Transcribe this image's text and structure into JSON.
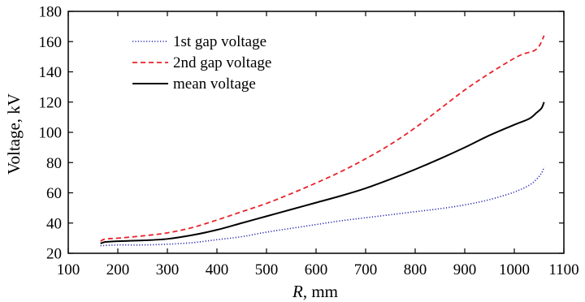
{
  "chart_data": {
    "type": "line",
    "xlabel_italic": "R",
    "xlabel_rest": ", mm",
    "ylabel": "Voltage, kV",
    "xlim": [
      100,
      1100
    ],
    "ylim": [
      20,
      180
    ],
    "xticks": [
      100,
      200,
      300,
      400,
      500,
      600,
      700,
      800,
      900,
      1000,
      1100
    ],
    "yticks": [
      20,
      40,
      60,
      80,
      100,
      120,
      140,
      160,
      180
    ],
    "legend_position": "top-left",
    "grid": false,
    "series": [
      {
        "name": "1st gap voltage",
        "color": "#2b2bb0",
        "style": "dotted",
        "x": [
          165,
          200,
          250,
          300,
          350,
          400,
          450,
          500,
          550,
          600,
          650,
          700,
          750,
          800,
          850,
          900,
          950,
          1000,
          1030,
          1045,
          1055,
          1060
        ],
        "y": [
          25,
          25.5,
          25.5,
          26,
          27,
          29,
          31,
          34,
          36.5,
          39,
          41.5,
          43.5,
          45.5,
          47.5,
          49.5,
          52,
          55.5,
          60.5,
          65,
          69,
          73,
          77
        ]
      },
      {
        "name": "2nd gap voltage",
        "color": "#e8232a",
        "style": "dashed",
        "x": [
          165,
          175,
          200,
          250,
          300,
          350,
          400,
          450,
          500,
          550,
          600,
          650,
          700,
          750,
          800,
          850,
          900,
          950,
          1000,
          1020,
          1040,
          1050,
          1055,
          1060
        ],
        "y": [
          28,
          29.5,
          30,
          31.5,
          33.5,
          37,
          42,
          47.5,
          53,
          59.5,
          66.5,
          74,
          82.5,
          92,
          103,
          115.5,
          128,
          139,
          149,
          152,
          154,
          157,
          160,
          164
        ]
      },
      {
        "name": "mean voltage",
        "color": "#000000",
        "style": "solid",
        "x": [
          165,
          175,
          200,
          250,
          300,
          350,
          400,
          450,
          500,
          550,
          600,
          650,
          700,
          750,
          800,
          850,
          900,
          950,
          1000,
          1030,
          1045,
          1055,
          1060
        ],
        "y": [
          26.5,
          27.5,
          28,
          28.5,
          29.5,
          32,
          35.5,
          40,
          44.5,
          49,
          53.5,
          58,
          63,
          69,
          75.5,
          82.5,
          90,
          98,
          105,
          109,
          113,
          116,
          120
        ]
      }
    ]
  }
}
